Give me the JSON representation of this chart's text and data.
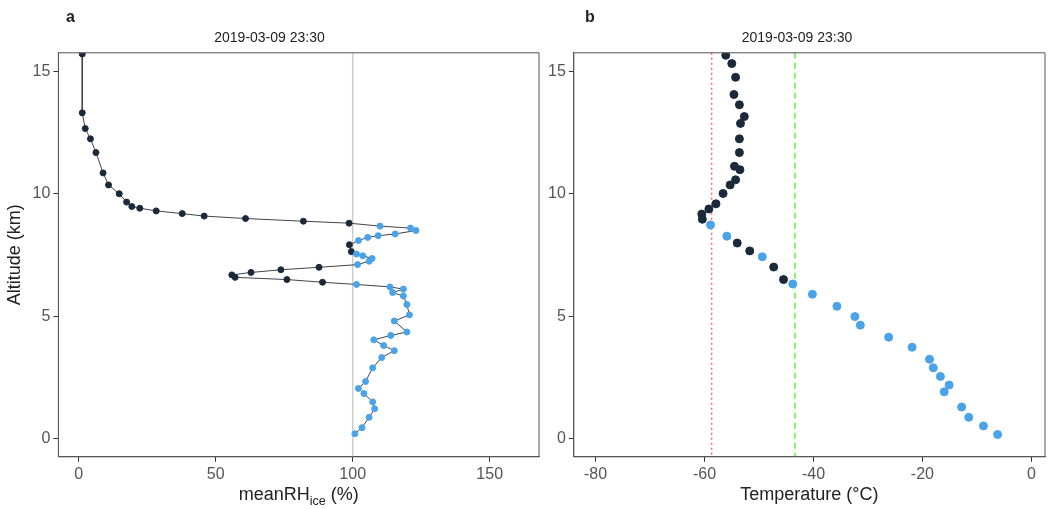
{
  "chart_data": [
    {
      "type": "line",
      "title": "2019-03-09 23:30",
      "xlabel": "meanRH$_{ice}$ (%)",
      "ylabel": "Altitude (km)",
      "annotations": [
        "a"
      ],
      "xlim": [
        -7.4,
        168
      ],
      "ylim": [
        -0.73,
        15.75
      ],
      "xticks": [
        0,
        50,
        100,
        150
      ],
      "yticks": [
        0,
        5,
        10,
        15
      ],
      "grid": false,
      "legend": false,
      "marker": "circle",
      "line_style": "solid",
      "ref_lines": [
        {
          "axis": "x",
          "value": 100,
          "color": "#cccccc",
          "line_style": "solid"
        }
      ],
      "series": [
        {
          "color": "#444444",
          "x": [
            1.3,
            1.3,
            2.4,
            4.3,
            6.3,
            8.9,
            10.9,
            14.8,
            17.5,
            19.4,
            22.3,
            28.3,
            37.8,
            45.8,
            60.9,
            82.0,
            98.7,
            110.0,
            121.1,
            123.1,
            115.5,
            109.3,
            105.5,
            102.1,
            98.8,
            99.5,
            101.4,
            103.7,
            107.1,
            106.0,
            101.8,
            87.7,
            73.8,
            62.9,
            55.9,
            57.1,
            76.0,
            89.0,
            101.4,
            113.6,
            118.5,
            114.6,
            118.5,
            119.8,
            120.7,
            115.2,
            119.8,
            113.9,
            107.7,
            111.3,
            115.2,
            110.6,
            107.3,
            104.7,
            102.1,
            104.1,
            107.3,
            108.0,
            106.0,
            103.4,
            100.8
          ],
          "values": [
            15.7,
            13.3,
            12.66,
            12.24,
            11.68,
            10.85,
            10.36,
            10.0,
            9.66,
            9.48,
            9.41,
            9.3,
            9.19,
            9.09,
            8.99,
            8.88,
            8.8,
            8.68,
            8.6,
            8.5,
            8.36,
            8.29,
            8.22,
            8.09,
            7.92,
            7.64,
            7.54,
            7.47,
            7.36,
            7.25,
            7.11,
            7.0,
            6.9,
            6.79,
            6.69,
            6.59,
            6.5,
            6.39,
            6.3,
            6.2,
            6.11,
            5.97,
            5.83,
            5.48,
            5.06,
            4.81,
            4.36,
            4.22,
            4.04,
            3.81,
            3.6,
            3.32,
            2.9,
            2.34,
            2.06,
            1.85,
            1.51,
            1.23,
            0.88,
            0.46,
            0.21
          ],
          "colors": [
            "#1b2a3a",
            "#1b2a3a",
            "#1b2a3a",
            "#1b2a3a",
            "#1b2a3a",
            "#1b2a3a",
            "#1b2a3a",
            "#1b2a3a",
            "#1b2a3a",
            "#1b2a3a",
            "#1b2a3a",
            "#1b2a3a",
            "#1b2a3a",
            "#1b2a3a",
            "#1b2a3a",
            "#1b2a3a",
            "#1b2a3a",
            "#4aa3e8",
            "#4aa3e8",
            "#4aa3e8",
            "#4aa3e8",
            "#4aa3e8",
            "#4aa3e8",
            "#4aa3e8",
            "#1b2a3a",
            "#1b2a3a",
            "#4aa3e8",
            "#4aa3e8",
            "#4aa3e8",
            "#4aa3e8",
            "#4aa3e8",
            "#1b2a3a",
            "#1b2a3a",
            "#1b2a3a",
            "#1b2a3a",
            "#1b2a3a",
            "#1b2a3a",
            "#1b2a3a",
            "#4aa3e8",
            "#4aa3e8",
            "#4aa3e8",
            "#4aa3e8",
            "#4aa3e8",
            "#4aa3e8",
            "#4aa3e8",
            "#4aa3e8",
            "#4aa3e8",
            "#4aa3e8",
            "#4aa3e8",
            "#4aa3e8",
            "#4aa3e8",
            "#4aa3e8",
            "#4aa3e8",
            "#4aa3e8",
            "#4aa3e8",
            "#4aa3e8",
            "#4aa3e8",
            "#4aa3e8",
            "#4aa3e8",
            "#4aa3e8",
            "#4aa3e8"
          ]
        }
      ]
    },
    {
      "type": "scatter",
      "title": "2019-03-09 23:30",
      "xlabel": "Temperature (°C)",
      "annotations": [
        "b"
      ],
      "xlim": [
        -84,
        2.5
      ],
      "ylim": [
        -0.73,
        15.75
      ],
      "xticks": [
        -80,
        -60,
        -40,
        -20,
        0
      ],
      "yticks": [
        0,
        5,
        10,
        15
      ],
      "grid": false,
      "legend": false,
      "marker": "circle",
      "ref_lines": [
        {
          "axis": "x",
          "value": -58.7,
          "color": "#ff6666",
          "line_style": "dotted"
        },
        {
          "axis": "x",
          "value": -43.4,
          "color": "#66ee44",
          "line_style": "dashed"
        }
      ],
      "series": [
        {
          "color": "#1b2a3a",
          "x": [
            -56.1,
            -55.0,
            -54.3,
            -54.6,
            -53.6,
            -52.7,
            -53.4,
            -53.6,
            -53.6,
            -54.5,
            -53.5,
            -54.3,
            -55.3,
            -56.6,
            -57.9,
            -59.2,
            -60.5,
            -60.4,
            -58.9,
            -55.9,
            -54.0,
            -51.7,
            -49.4,
            -47.3,
            -45.5,
            -43.8,
            -40.2,
            -35.7,
            -32.4,
            -31.4,
            -26.2,
            -21.9,
            -18.7,
            -18.0,
            -16.7,
            -15.1,
            -16.0,
            -12.8,
            -11.5,
            -8.8,
            -6.2
          ],
          "values": [
            15.65,
            15.31,
            14.75,
            14.05,
            13.63,
            13.15,
            12.87,
            12.24,
            11.68,
            11.12,
            10.98,
            10.57,
            10.36,
            10.01,
            9.59,
            9.38,
            9.17,
            8.96,
            8.73,
            8.27,
            7.99,
            7.67,
            7.43,
            7.01,
            6.5,
            6.32,
            5.9,
            5.41,
            4.99,
            4.64,
            4.15,
            3.74,
            3.25,
            2.9,
            2.55,
            2.2,
            1.92,
            1.3,
            0.88,
            0.53,
            0.18
          ],
          "colors": [
            "#1b2a3a",
            "#1b2a3a",
            "#1b2a3a",
            "#1b2a3a",
            "#1b2a3a",
            "#1b2a3a",
            "#1b2a3a",
            "#1b2a3a",
            "#1b2a3a",
            "#1b2a3a",
            "#1b2a3a",
            "#1b2a3a",
            "#1b2a3a",
            "#1b2a3a",
            "#1b2a3a",
            "#1b2a3a",
            "#1b2a3a",
            "#1b2a3a",
            "#4aa3e8",
            "#4aa3e8",
            "#1b2a3a",
            "#1b2a3a",
            "#4aa3e8",
            "#1b2a3a",
            "#1b2a3a",
            "#4aa3e8",
            "#4aa3e8",
            "#4aa3e8",
            "#4aa3e8",
            "#4aa3e8",
            "#4aa3e8",
            "#4aa3e8",
            "#4aa3e8",
            "#4aa3e8",
            "#4aa3e8",
            "#4aa3e8",
            "#4aa3e8",
            "#4aa3e8",
            "#4aa3e8",
            "#4aa3e8",
            "#4aa3e8"
          ]
        }
      ]
    }
  ]
}
